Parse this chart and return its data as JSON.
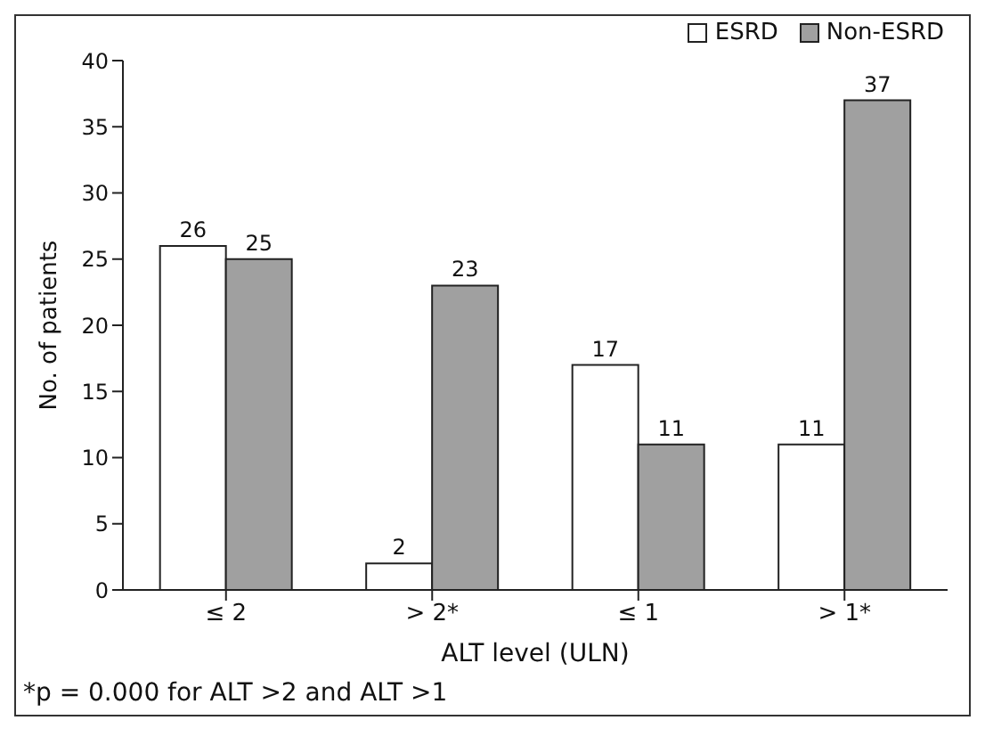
{
  "chart_data": {
    "type": "bar",
    "xlabel": "ALT level (ULN)",
    "ylabel": "No. of patients",
    "categories": [
      "≤ 2",
      "> 2*",
      "≤ 1",
      "> 1*"
    ],
    "series": [
      {
        "name": "ESRD",
        "color": "#ffffff",
        "values": [
          26,
          2,
          17,
          11
        ]
      },
      {
        "name": "Non-ESRD",
        "color": "#a0a0a0",
        "values": [
          25,
          23,
          11,
          37
        ]
      }
    ],
    "ylim": [
      0,
      40
    ],
    "yticks": [
      0,
      5,
      10,
      15,
      20,
      25,
      30,
      35,
      40
    ],
    "grid": false,
    "legend": "top right",
    "data_labels": true,
    "annotations": [
      "*p = 0.000 for ALT >2 and ALT >1"
    ]
  }
}
